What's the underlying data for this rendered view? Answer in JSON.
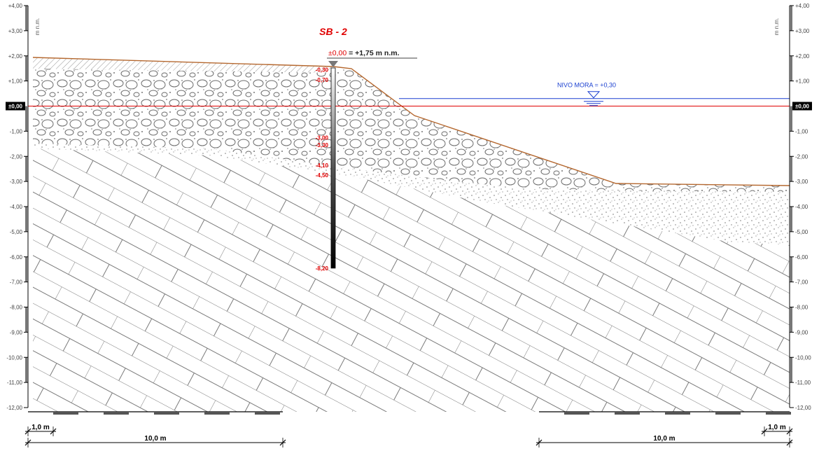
{
  "borehole": {
    "label": "SB - 2",
    "datum_prefix": "±",
    "datum_zero": "0,00",
    "datum_rest": " = +1,75 m n.m.",
    "depth_marks": [
      {
        "label": "-0,30",
        "value": -0.3
      },
      {
        "label": "-0,70",
        "value": -0.7
      },
      {
        "label": "-3,00",
        "value": -3.0
      },
      {
        "label": "-3,30",
        "value": -3.3
      },
      {
        "label": "-4,10",
        "value": -4.1
      },
      {
        "label": "-4,50",
        "value": -4.5
      },
      {
        "label": "-8,20",
        "value": -8.2
      }
    ]
  },
  "sea_level": {
    "label": "NIVO MORA = +0,30",
    "value": 0.3
  },
  "axis": {
    "unit_label": "m n.m.",
    "zero_label": "±0,00",
    "ticks": [
      {
        "label": "+4,00",
        "value": 4
      },
      {
        "label": "+3,00",
        "value": 3
      },
      {
        "label": "+2,00",
        "value": 2
      },
      {
        "label": "+1,00",
        "value": 1
      },
      {
        "label": "-1,00",
        "value": -1
      },
      {
        "label": "-2,00",
        "value": -2
      },
      {
        "label": "-3,00",
        "value": -3
      },
      {
        "label": "-4,00",
        "value": -4
      },
      {
        "label": "-5,00",
        "value": -5
      },
      {
        "label": "-6,00",
        "value": -6
      },
      {
        "label": "-7,00",
        "value": -7
      },
      {
        "label": "-8,00",
        "value": -8
      },
      {
        "label": "-9,00",
        "value": -9
      },
      {
        "label": "-10,00",
        "value": -10
      },
      {
        "label": "-11,00",
        "value": -11
      },
      {
        "label": "-12,00",
        "value": -12
      }
    ]
  },
  "scale": {
    "small_left": "1,0 m",
    "large_left": "10,0 m",
    "small_right": "1,0 m",
    "large_right": "10,0 m"
  },
  "colors": {
    "ground_line": "#b5682f",
    "datum_line": "#e00000",
    "water_line": "#1a3fd0",
    "depth_label": "#e00000",
    "water_label": "#1a3fd0"
  }
}
